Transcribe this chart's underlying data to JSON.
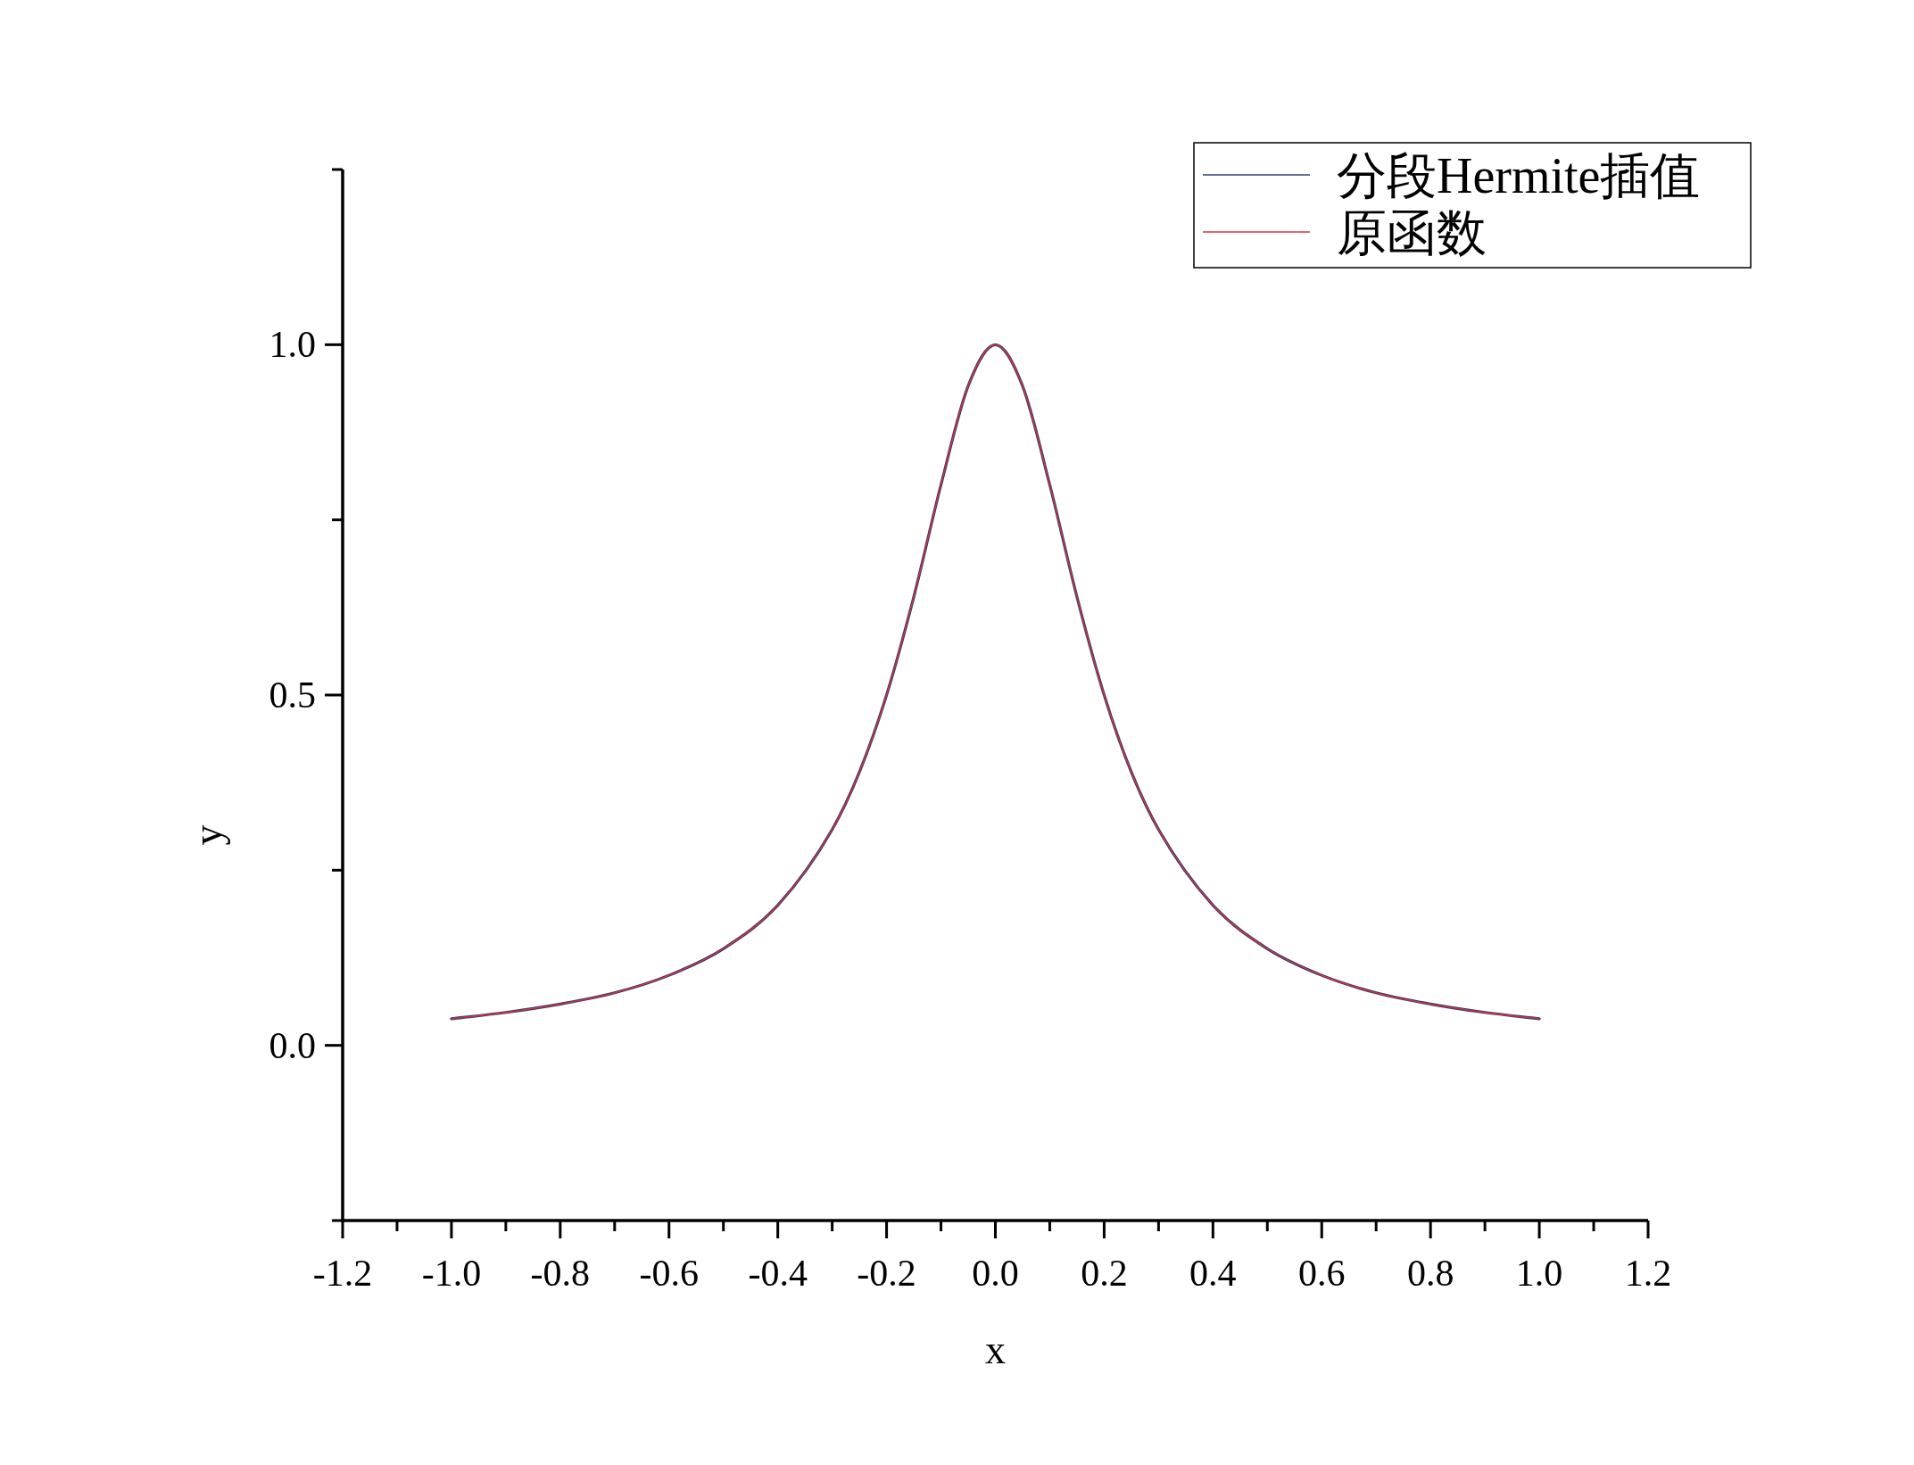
{
  "chart_data": {
    "type": "line",
    "xlabel": "x",
    "ylabel": "y",
    "xlim": [
      -1.2,
      1.2
    ],
    "ylim": [
      -0.25,
      1.25
    ],
    "xticks": [
      {
        "value": -1.2,
        "label": "-1.2"
      },
      {
        "value": -1.1,
        "label": null
      },
      {
        "value": -1.0,
        "label": "-1.0"
      },
      {
        "value": -0.9,
        "label": null
      },
      {
        "value": -0.8,
        "label": "-0.8"
      },
      {
        "value": -0.7,
        "label": null
      },
      {
        "value": -0.6,
        "label": "-0.6"
      },
      {
        "value": -0.5,
        "label": null
      },
      {
        "value": -0.4,
        "label": "-0.4"
      },
      {
        "value": -0.3,
        "label": null
      },
      {
        "value": -0.2,
        "label": "-0.2"
      },
      {
        "value": -0.1,
        "label": null
      },
      {
        "value": 0,
        "label": "0.0"
      },
      {
        "value": 0.1,
        "label": null
      },
      {
        "value": 0.2,
        "label": "0.2"
      },
      {
        "value": 0.3,
        "label": null
      },
      {
        "value": 0.4,
        "label": "0.4"
      },
      {
        "value": 0.5,
        "label": null
      },
      {
        "value": 0.6,
        "label": "0.6"
      },
      {
        "value": 0.7,
        "label": null
      },
      {
        "value": 0.8,
        "label": "0.8"
      },
      {
        "value": 0.9,
        "label": null
      },
      {
        "value": 1.0,
        "label": "1.0"
      },
      {
        "value": 1.1,
        "label": null
      },
      {
        "value": 1.2,
        "label": "1.2"
      }
    ],
    "yticks": [
      {
        "value": -0.25,
        "label": null
      },
      {
        "value": 0,
        "label": "0.0"
      },
      {
        "value": 0.25,
        "label": null
      },
      {
        "value": 0.5,
        "label": "0.5"
      },
      {
        "value": 0.75,
        "label": null
      },
      {
        "value": 1.0,
        "label": "1.0"
      },
      {
        "value": 1.25,
        "label": null
      }
    ],
    "x": [
      -1,
      -0.9,
      -0.8,
      -0.7,
      -0.6,
      -0.5,
      -0.4,
      -0.3,
      -0.25,
      -0.2,
      -0.15,
      -0.1,
      -0.05,
      0,
      0.05,
      0.1,
      0.15,
      0.2,
      0.25,
      0.3,
      0.4,
      0.5,
      0.6,
      0.7,
      0.8,
      0.9,
      1
    ],
    "series": [
      {
        "name": "分段Hermite插值",
        "color": "#2f3f6f",
        "values": [
          0.038,
          0.047,
          0.059,
          0.075,
          0.1,
          0.138,
          0.2,
          0.308,
          0.39,
          0.5,
          0.64,
          0.8,
          0.941,
          1,
          0.941,
          0.8,
          0.64,
          0.5,
          0.39,
          0.308,
          0.2,
          0.138,
          0.1,
          0.075,
          0.059,
          0.047,
          0.038
        ]
      },
      {
        "name": "原函数",
        "color": "#e0303a",
        "values": [
          0.038,
          0.047,
          0.059,
          0.075,
          0.1,
          0.138,
          0.2,
          0.308,
          0.39,
          0.5,
          0.64,
          0.8,
          0.941,
          1,
          0.941,
          0.8,
          0.64,
          0.5,
          0.39,
          0.308,
          0.2,
          0.138,
          0.1,
          0.075,
          0.059,
          0.047,
          0.038
        ]
      }
    ],
    "grid": false,
    "legend": "top right"
  }
}
